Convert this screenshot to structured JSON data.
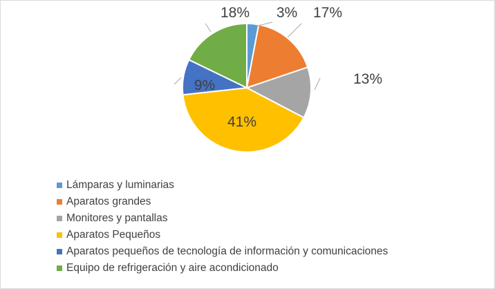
{
  "chart_data": {
    "type": "pie",
    "title": "",
    "start_angle_deg": 0,
    "direction": "clockwise",
    "slices": [
      {
        "name": "Lámparas y luminarias",
        "value": 3,
        "label": "3%",
        "color": "#5b9bd5"
      },
      {
        "name": "Aparatos grandes",
        "value": 17,
        "label": "17%",
        "color": "#ed7d31"
      },
      {
        "name": "Monitores y pantallas",
        "value": 13,
        "label": "13%",
        "color": "#a5a5a5"
      },
      {
        "name": "Aparatos Pequeños",
        "value": 41,
        "label": "41%",
        "color": "#ffc000"
      },
      {
        "name": "Aparatos pequeños de tecnología de información y comunicaciones",
        "value": 9,
        "label": "9%",
        "color": "#4472c4"
      },
      {
        "name": "Equipo de refrigeración y aire acondicionado",
        "value": 18,
        "label": "18%",
        "color": "#70ad47"
      }
    ],
    "legend_position": "bottom-left"
  }
}
